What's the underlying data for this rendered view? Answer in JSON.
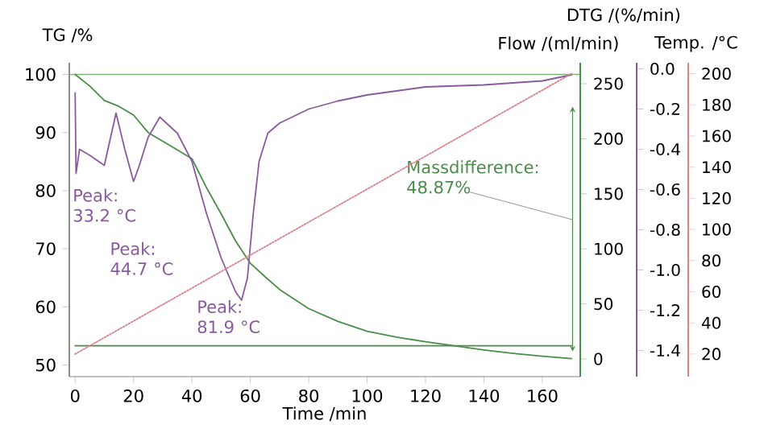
{
  "chart_data": [
    {
      "type": "line",
      "xlabel": "Time /min",
      "ylabel": "TG /%",
      "y2label": "Flow /(ml/min)",
      "y3label": "DTG /(%/min)",
      "xlim": [
        -2,
        173
      ],
      "xticks": [
        0,
        20,
        40,
        60,
        80,
        100,
        120,
        140,
        160
      ],
      "ylim": [
        48,
        102
      ],
      "yticks": [
        50,
        60,
        70,
        80,
        90,
        100
      ],
      "y2lim": [
        -16,
        269
      ],
      "y2ticks": [
        0,
        50,
        100,
        150,
        200,
        250
      ],
      "y3lim": [
        -1.53,
        0.03
      ],
      "y3ticks": [
        {
          "value": 0,
          "label": "0.0"
        },
        {
          "value": -0.2,
          "label": "-0.2"
        },
        {
          "value": -0.4,
          "label": "-0.4"
        },
        {
          "value": -0.6,
          "label": "-0.6"
        },
        {
          "value": -0.8,
          "label": "-0.8"
        },
        {
          "value": -1.0,
          "label": "-1.0"
        },
        {
          "value": -1.2,
          "label": "-1.2"
        },
        {
          "value": -1.4,
          "label": "-1.4"
        }
      ],
      "series": [
        {
          "color": "#4a8c4a",
          "x": [
            0,
            5,
            10,
            15,
            20,
            25,
            30,
            35,
            40,
            45,
            50,
            55,
            60,
            65,
            70,
            80,
            90,
            100,
            110,
            120,
            130,
            140,
            150,
            160,
            170
          ],
          "values": [
            100,
            98,
            95.5,
            94.5,
            93,
            90,
            88.5,
            87,
            85.5,
            80.5,
            76,
            71.3,
            67.5,
            65.2,
            63,
            59.7,
            57.5,
            55.8,
            54.8,
            54,
            53.3,
            52.6,
            52,
            51.5,
            51.1
          ]
        },
        {
          "color": "#8a5a9e",
          "axis": "y3",
          "x": [
            0,
            0.3,
            1.5,
            5,
            10,
            14,
            17,
            20,
            22,
            25,
            29,
            35,
            40,
            45,
            50,
            55,
            57,
            59,
            61,
            63,
            66,
            70,
            80,
            90,
            100,
            110,
            120,
            140,
            160,
            170
          ],
          "values": [
            -0.12,
            -0.52,
            -0.4,
            -0.43,
            -0.48,
            -0.22,
            -0.4,
            -0.56,
            -0.48,
            -0.34,
            -0.24,
            -0.32,
            -0.46,
            -0.72,
            -0.94,
            -1.11,
            -1.15,
            -1.04,
            -0.72,
            -0.46,
            -0.32,
            -0.27,
            -0.2,
            -0.16,
            -0.13,
            -0.11,
            -0.09,
            -0.08,
            -0.06,
            -0.03
          ]
        },
        {
          "color": "#4a8c4a",
          "axis": "y2",
          "x": [
            0,
            170
          ],
          "values": [
            12,
            12
          ]
        }
      ],
      "ref_lines": [
        {
          "axis": "y",
          "value": 100,
          "color": "#7fb07f"
        }
      ],
      "annotations": [
        "Peak: 33.2 °C",
        "Peak: 44.7 °C",
        "Peak: 81.9 °C",
        "Massdifference: 48.87%"
      ]
    },
    {
      "type": "line",
      "ylabel": "Temp. /°C",
      "xlim": [
        -2,
        173
      ],
      "ylim": [
        5.5,
        207
      ],
      "yticks": [
        20,
        40,
        60,
        80,
        100,
        120,
        140,
        160,
        180,
        200
      ],
      "tick_labels": "y",
      "series": [
        {
          "color": "#d9828a",
          "line_style": "dotted",
          "x": [
            0,
            170
          ],
          "values": [
            20,
            200
          ]
        }
      ]
    }
  ]
}
